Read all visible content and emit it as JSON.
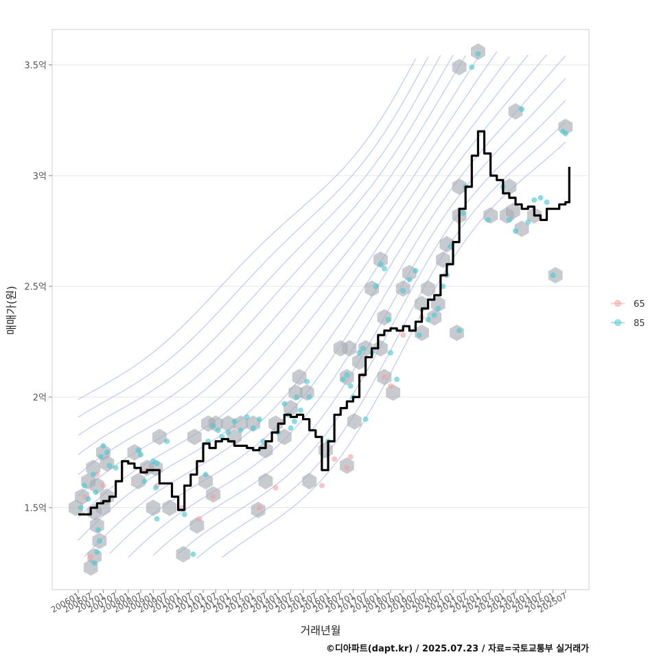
{
  "chart_data": {
    "type": "line",
    "xlabel": "거래년월",
    "ylabel": "매매가(원)",
    "x_categories": [
      "200601",
      "200607",
      "200701",
      "200707",
      "200801",
      "200807",
      "200901",
      "200907",
      "201001",
      "201007",
      "201101",
      "201107",
      "201201",
      "201207",
      "201301",
      "201307",
      "201401",
      "201407",
      "201501",
      "201507",
      "201601",
      "201607",
      "201701",
      "201707",
      "201801",
      "201807",
      "201901",
      "201907",
      "202001",
      "202007",
      "202101",
      "202107",
      "202201",
      "202207",
      "202301",
      "202307",
      "202401",
      "202407",
      "202501",
      "202507"
    ],
    "y_ticks": [
      1.5,
      2.0,
      2.5,
      3.0,
      3.5
    ],
    "y_tick_labels": [
      "1.5억",
      "2억",
      "2.5억",
      "3억",
      "3.5억"
    ],
    "ylim": [
      1.13,
      3.66
    ],
    "legend": [
      {
        "name": "65",
        "color": "#f4a0a0"
      },
      {
        "name": "85",
        "color": "#4fc9d2"
      }
    ],
    "trend_line": [
      [
        0,
        1.47
      ],
      [
        0.5,
        1.47
      ],
      [
        1,
        1.5
      ],
      [
        1.5,
        1.52
      ],
      [
        2,
        1.53
      ],
      [
        2.5,
        1.55
      ],
      [
        3,
        1.62
      ],
      [
        3.5,
        1.71
      ],
      [
        4,
        1.7
      ],
      [
        4.5,
        1.68
      ],
      [
        5,
        1.66
      ],
      [
        5.5,
        1.67
      ],
      [
        6,
        1.67
      ],
      [
        6.5,
        1.61
      ],
      [
        7,
        1.61
      ],
      [
        7.5,
        1.55
      ],
      [
        8,
        1.49
      ],
      [
        8.5,
        1.6
      ],
      [
        9,
        1.65
      ],
      [
        9.5,
        1.71
      ],
      [
        10,
        1.79
      ],
      [
        10.5,
        1.77
      ],
      [
        11,
        1.8
      ],
      [
        11.5,
        1.81
      ],
      [
        12,
        1.8
      ],
      [
        12.5,
        1.78
      ],
      [
        13,
        1.78
      ],
      [
        13.5,
        1.77
      ],
      [
        14,
        1.76
      ],
      [
        14.5,
        1.77
      ],
      [
        15,
        1.8
      ],
      [
        15.5,
        1.84
      ],
      [
        16,
        1.88
      ],
      [
        16.5,
        1.92
      ],
      [
        17,
        1.91
      ],
      [
        17.5,
        1.92
      ],
      [
        18,
        1.9
      ],
      [
        18.5,
        1.85
      ],
      [
        19,
        1.82
      ],
      [
        19.5,
        1.67
      ],
      [
        20,
        1.8
      ],
      [
        20.5,
        1.92
      ],
      [
        21,
        1.95
      ],
      [
        21.5,
        1.98
      ],
      [
        22,
        2.0
      ],
      [
        22.5,
        2.1
      ],
      [
        23,
        2.18
      ],
      [
        23.5,
        2.22
      ],
      [
        24,
        2.28
      ],
      [
        24.5,
        2.3
      ],
      [
        25,
        2.31
      ],
      [
        25.5,
        2.3
      ],
      [
        26,
        2.32
      ],
      [
        26.5,
        2.3
      ],
      [
        27,
        2.34
      ],
      [
        27.5,
        2.4
      ],
      [
        28,
        2.44
      ],
      [
        28.5,
        2.46
      ],
      [
        29,
        2.55
      ],
      [
        29.5,
        2.6
      ],
      [
        30,
        2.7
      ],
      [
        30.5,
        2.85
      ],
      [
        31,
        2.95
      ],
      [
        31.5,
        3.09
      ],
      [
        32,
        3.2
      ],
      [
        32.5,
        3.1
      ],
      [
        33,
        3.0
      ],
      [
        33.5,
        2.98
      ],
      [
        34,
        2.92
      ],
      [
        34.5,
        2.9
      ],
      [
        35,
        2.87
      ],
      [
        35.5,
        2.85
      ],
      [
        36,
        2.86
      ],
      [
        36.5,
        2.82
      ],
      [
        37,
        2.8
      ],
      [
        37.5,
        2.85
      ],
      [
        38,
        2.85
      ],
      [
        38.5,
        2.87
      ],
      [
        39,
        2.88
      ],
      [
        39.3,
        3.04
      ]
    ],
    "points_85": [
      [
        0.2,
        1.5
      ],
      [
        0.5,
        1.6
      ],
      [
        0.8,
        1.54
      ],
      [
        1.2,
        1.65
      ],
      [
        1.4,
        1.57
      ],
      [
        1.6,
        1.4
      ],
      [
        1.7,
        1.35
      ],
      [
        1.5,
        1.3
      ],
      [
        1.3,
        1.25
      ],
      [
        1.8,
        1.73
      ],
      [
        2.0,
        1.78
      ],
      [
        2.3,
        1.75
      ],
      [
        2.5,
        1.69
      ],
      [
        3.0,
        1.68
      ],
      [
        4.8,
        1.76
      ],
      [
        5.0,
        1.74
      ],
      [
        5.3,
        1.62
      ],
      [
        6.0,
        1.71
      ],
      [
        6.3,
        1.7
      ],
      [
        6.2,
        1.59
      ],
      [
        6.3,
        1.45
      ],
      [
        7.1,
        1.8
      ],
      [
        8.5,
        1.47
      ],
      [
        9.2,
        1.29
      ],
      [
        10.2,
        1.65
      ],
      [
        10.4,
        1.8
      ],
      [
        10.8,
        1.87
      ],
      [
        11.2,
        1.85
      ],
      [
        11.5,
        1.82
      ],
      [
        12.0,
        1.84
      ],
      [
        12.5,
        1.89
      ],
      [
        13.0,
        1.85
      ],
      [
        13.5,
        1.91
      ],
      [
        14.0,
        1.86
      ],
      [
        14.5,
        1.9
      ],
      [
        14.8,
        1.8
      ],
      [
        16.0,
        1.84
      ],
      [
        16.5,
        1.97
      ],
      [
        16.8,
        1.92
      ],
      [
        17.0,
        1.86
      ],
      [
        17.3,
        1.89
      ],
      [
        17.5,
        2.0
      ],
      [
        17.8,
        1.94
      ],
      [
        18.3,
        2.07
      ],
      [
        18.5,
        2.0
      ],
      [
        20.0,
        1.8
      ],
      [
        21.2,
        2.08
      ],
      [
        21.5,
        2.1
      ],
      [
        21.8,
        2.05
      ],
      [
        22.0,
        2.0
      ],
      [
        22.5,
        2.2
      ],
      [
        22.8,
        2.22
      ],
      [
        23.0,
        1.9
      ],
      [
        23.5,
        2.2
      ],
      [
        23.8,
        2.5
      ],
      [
        24.2,
        2.6
      ],
      [
        24.5,
        2.58
      ],
      [
        24.8,
        2.35
      ],
      [
        25.0,
        2.2
      ],
      [
        25.5,
        2.08
      ],
      [
        26.0,
        2.48
      ],
      [
        26.5,
        2.53
      ],
      [
        27.0,
        2.57
      ],
      [
        27.3,
        2.28
      ],
      [
        28.0,
        2.35
      ],
      [
        28.5,
        2.37
      ],
      [
        28.8,
        2.4
      ],
      [
        29.2,
        2.5
      ],
      [
        29.5,
        2.55
      ],
      [
        29.8,
        2.68
      ],
      [
        30.5,
        2.3
      ],
      [
        30.8,
        2.83
      ],
      [
        31.0,
        2.95
      ],
      [
        31.5,
        3.49
      ],
      [
        32.0,
        3.55
      ],
      [
        32.8,
        2.8
      ],
      [
        34.0,
        2.95
      ],
      [
        34.5,
        2.8
      ],
      [
        35.0,
        2.75
      ],
      [
        35.5,
        3.3
      ],
      [
        36.0,
        2.79
      ],
      [
        36.5,
        2.89
      ],
      [
        37.0,
        2.9
      ],
      [
        37.5,
        2.88
      ],
      [
        38.0,
        2.55
      ],
      [
        38.8,
        3.2
      ],
      [
        39.0,
        3.19
      ]
    ],
    "points_65": [
      [
        0.5,
        1.55
      ],
      [
        1.0,
        1.28
      ],
      [
        1.5,
        1.65
      ],
      [
        2.0,
        1.6
      ],
      [
        5.5,
        1.67
      ],
      [
        6.3,
        1.6
      ],
      [
        8.3,
        1.5
      ],
      [
        9.7,
        1.45
      ],
      [
        10.8,
        1.55
      ],
      [
        14.5,
        1.5
      ],
      [
        15.8,
        1.59
      ],
      [
        19.5,
        1.6
      ],
      [
        20.5,
        1.72
      ],
      [
        21.5,
        1.68
      ],
      [
        21.8,
        1.73
      ],
      [
        22.8,
        2.1
      ],
      [
        24.5,
        2.09
      ],
      [
        25.0,
        2.05
      ],
      [
        26.0,
        2.28
      ],
      [
        27.5,
        2.36
      ]
    ],
    "hex_centers": [
      [
        -0.2,
        1.5
      ],
      [
        0.3,
        1.55
      ],
      [
        0.8,
        1.62
      ],
      [
        1.2,
        1.68
      ],
      [
        1.5,
        1.6
      ],
      [
        1.3,
        1.48
      ],
      [
        1.5,
        1.42
      ],
      [
        1.3,
        1.28
      ],
      [
        1.0,
        1.23
      ],
      [
        1.7,
        1.35
      ],
      [
        2.0,
        1.5
      ],
      [
        2.3,
        1.55
      ],
      [
        2.0,
        1.75
      ],
      [
        2.3,
        1.7
      ],
      [
        4.5,
        1.75
      ],
      [
        4.8,
        1.62
      ],
      [
        5.5,
        1.68
      ],
      [
        6.2,
        1.68
      ],
      [
        6.0,
        1.5
      ],
      [
        6.5,
        1.82
      ],
      [
        7.3,
        1.5
      ],
      [
        8.4,
        1.29
      ],
      [
        9.3,
        1.82
      ],
      [
        10.2,
        1.62
      ],
      [
        10.4,
        1.88
      ],
      [
        11.0,
        1.88
      ],
      [
        10.8,
        1.56
      ],
      [
        9.5,
        1.42
      ],
      [
        12.0,
        1.88
      ],
      [
        12.5,
        1.82
      ],
      [
        13.0,
        1.88
      ],
      [
        14.0,
        1.88
      ],
      [
        14.4,
        1.49
      ],
      [
        15.0,
        1.62
      ],
      [
        15.0,
        1.76
      ],
      [
        15.8,
        1.88
      ],
      [
        16.5,
        1.82
      ],
      [
        17.0,
        1.95
      ],
      [
        17.4,
        2.02
      ],
      [
        17.7,
        2.09
      ],
      [
        18.3,
        2.02
      ],
      [
        18.5,
        1.62
      ],
      [
        19.8,
        1.76
      ],
      [
        21.0,
        2.22
      ],
      [
        21.7,
        2.22
      ],
      [
        21.5,
        2.09
      ],
      [
        21.5,
        1.69
      ],
      [
        22.1,
        1.89
      ],
      [
        22.5,
        2.16
      ],
      [
        23.0,
        2.22
      ],
      [
        23.5,
        2.49
      ],
      [
        24.2,
        2.22
      ],
      [
        24.5,
        2.36
      ],
      [
        24.2,
        2.62
      ],
      [
        24.5,
        2.09
      ],
      [
        25.2,
        2.02
      ],
      [
        26.0,
        2.49
      ],
      [
        26.5,
        2.56
      ],
      [
        27.5,
        2.42
      ],
      [
        28.0,
        2.49
      ],
      [
        27.5,
        2.29
      ],
      [
        28.5,
        2.36
      ],
      [
        28.8,
        2.42
      ],
      [
        29.2,
        2.62
      ],
      [
        29.5,
        2.69
      ],
      [
        30.5,
        2.82
      ],
      [
        30.5,
        2.95
      ],
      [
        30.5,
        3.49
      ],
      [
        30.3,
        2.29
      ],
      [
        32.0,
        3.56
      ],
      [
        33.0,
        2.82
      ],
      [
        34.5,
        2.95
      ],
      [
        34.3,
        2.82
      ],
      [
        35.0,
        3.29
      ],
      [
        35.5,
        2.76
      ],
      [
        36.5,
        2.82
      ],
      [
        38.2,
        2.55
      ],
      [
        39.0,
        3.22
      ],
      [
        34.8,
        2.84
      ]
    ],
    "caption": "©디아파트(dapt.kr) / 2025.07.23 / 자료=국토교통부 실거래가"
  }
}
